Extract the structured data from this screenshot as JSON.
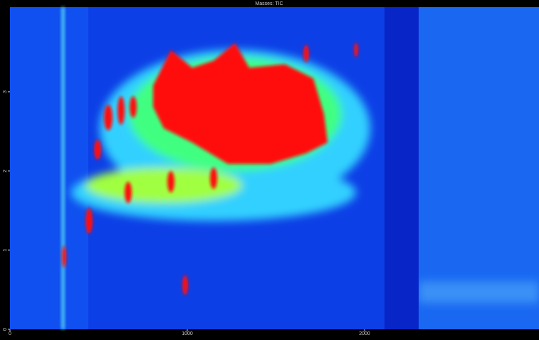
{
  "chart_data": {
    "type": "heatmap",
    "title": "Masses: TIC",
    "xlim": [
      0,
      2984
    ],
    "xticks": [
      0,
      1000,
      2000
    ],
    "ylim": [
      0,
      4.07
    ],
    "yticks": [
      0,
      1,
      2,
      3
    ]
  }
}
